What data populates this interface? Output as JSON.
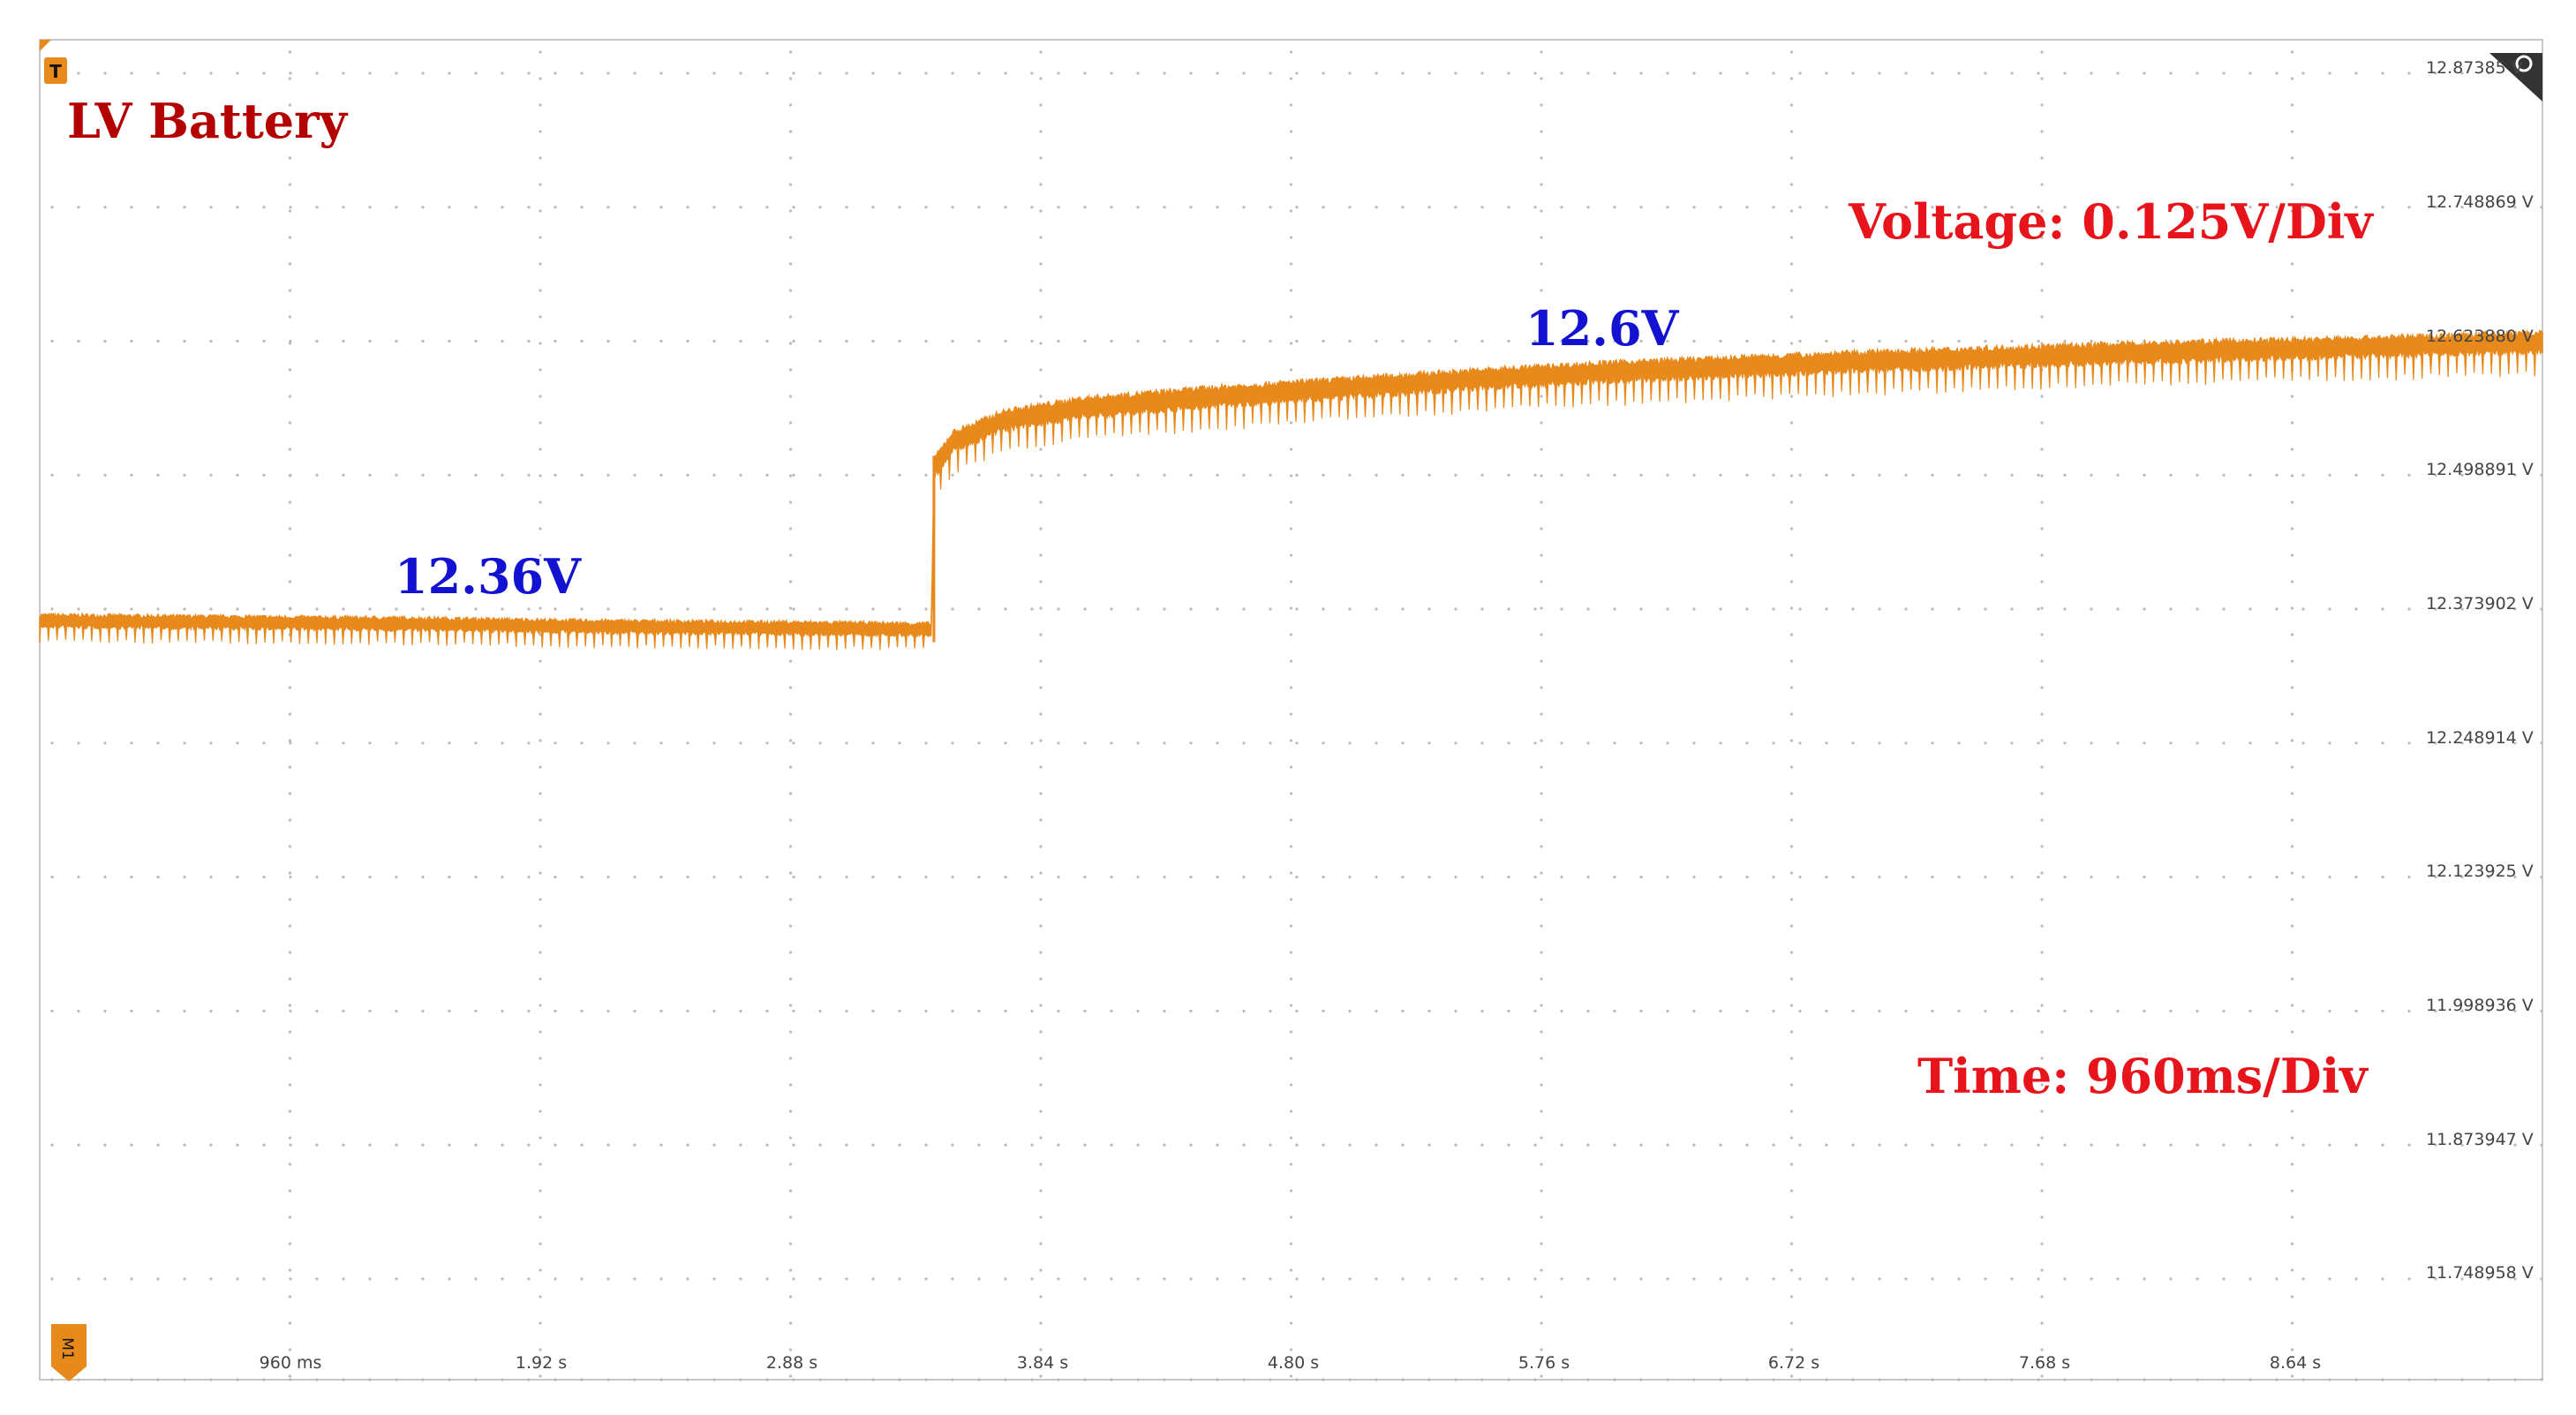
{
  "chart_data": {
    "type": "line",
    "title": "LV Battery",
    "voltage_scale_label": "Voltage: 0.125V/Div",
    "time_scale_label": "Time: 960ms/Div",
    "annotations": [
      {
        "text": "12.36V",
        "at_x_s": 1.6,
        "at_y_v": 12.36
      },
      {
        "text": "12.6V",
        "at_x_s": 5.96,
        "at_y_v": 12.6
      }
    ],
    "x_ticks": [
      "960 ms",
      "1.92 s",
      "2.88 s",
      "3.84 s",
      "4.80 s",
      "5.76 s",
      "6.72 s",
      "7.68 s",
      "8.64 s"
    ],
    "x_tick_values_s": [
      0.96,
      1.92,
      2.88,
      3.84,
      4.8,
      5.76,
      6.72,
      7.68,
      8.64
    ],
    "y_ticks": [
      "12.87385 V",
      "12.748869 V",
      "12.623880 V",
      "12.498891 V",
      "12.373902 V",
      "12.248914 V",
      "12.123925 V",
      "11.998936 V",
      "11.873947 V",
      "11.748958 V"
    ],
    "y_tick_values_v": [
      12.87385,
      12.748869,
      12.62388,
      12.498891,
      12.373902,
      12.248914,
      12.123925,
      11.998936,
      11.873947,
      11.748958
    ],
    "xlim_s": [
      0,
      9.6
    ],
    "ylim_v": [
      11.655,
      12.9051
    ],
    "grid": true,
    "series": [
      {
        "name": "LV Battery",
        "color": "#E8891C",
        "step_time_s": 3.43,
        "x": [
          0,
          0.5,
          1.0,
          1.5,
          2.0,
          2.5,
          3.0,
          3.42,
          3.43,
          3.5,
          3.7,
          4.0,
          4.5,
          5.0,
          5.5,
          6.0,
          6.5,
          7.0,
          7.5,
          8.0,
          8.5,
          9.0,
          9.6
        ],
        "values": [
          12.363,
          12.362,
          12.361,
          12.36,
          12.358,
          12.357,
          12.356,
          12.355,
          12.505,
          12.53,
          12.55,
          12.562,
          12.572,
          12.58,
          12.588,
          12.595,
          12.6,
          12.605,
          12.609,
          12.613,
          12.616,
          12.619,
          12.623
        ],
        "ripple_v": 0.012
      }
    ]
  }
}
